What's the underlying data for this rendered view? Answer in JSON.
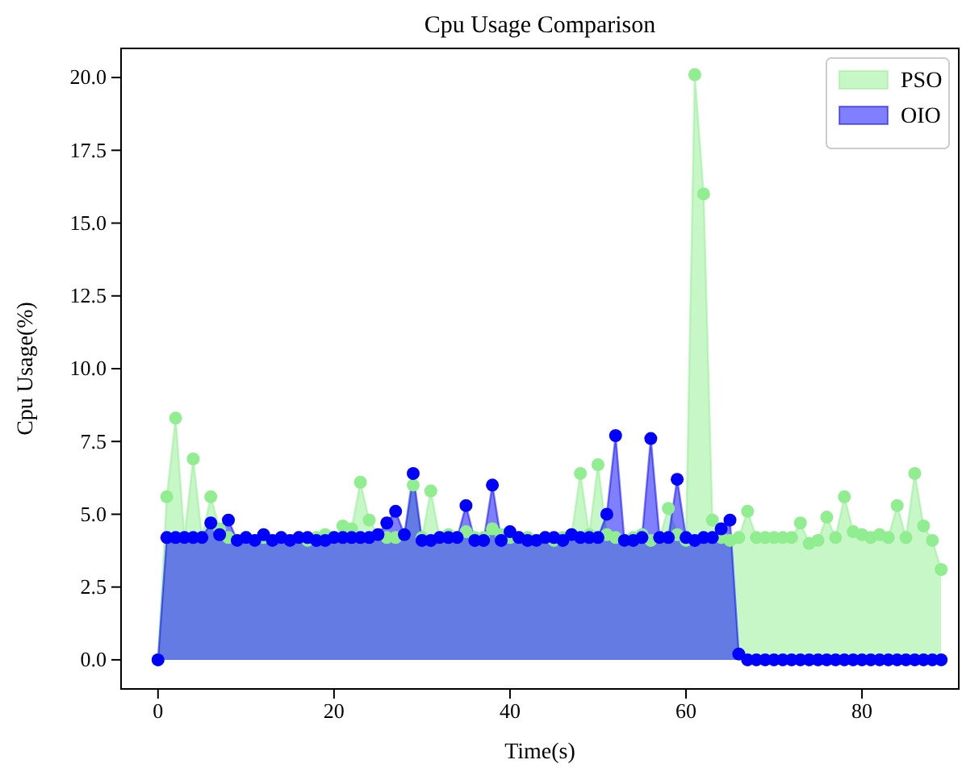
{
  "chart_data": {
    "type": "area",
    "title": "Cpu Usage Comparison",
    "xlabel": "Time(s)",
    "ylabel": "Cpu Usage(%)",
    "x": [
      0,
      1,
      2,
      3,
      4,
      5,
      6,
      7,
      8,
      9,
      10,
      11,
      12,
      13,
      14,
      15,
      16,
      17,
      18,
      19,
      20,
      21,
      22,
      23,
      24,
      25,
      26,
      27,
      28,
      29,
      30,
      31,
      32,
      33,
      34,
      35,
      36,
      37,
      38,
      39,
      40,
      41,
      42,
      43,
      44,
      45,
      46,
      47,
      48,
      49,
      50,
      51,
      52,
      53,
      54,
      55,
      56,
      57,
      58,
      59,
      60,
      61,
      62,
      63,
      64,
      65,
      66,
      67,
      68,
      69,
      70,
      71,
      72,
      73,
      74,
      75,
      76,
      77,
      78,
      79,
      80,
      81,
      82,
      83,
      84,
      85,
      86,
      87,
      88,
      89
    ],
    "series": [
      {
        "name": "PSO",
        "color": "#90ee90",
        "values": [
          0,
          5.6,
          8.3,
          4.2,
          6.9,
          4.2,
          5.6,
          4.5,
          4.2,
          4.1,
          4.2,
          4.1,
          4.2,
          4.1,
          4.2,
          4.1,
          4.2,
          4.1,
          4.2,
          4.3,
          4.2,
          4.6,
          4.5,
          6.1,
          4.8,
          4.3,
          4.2,
          4.2,
          4.3,
          6.0,
          4.2,
          5.8,
          4.2,
          4.3,
          4.2,
          4.4,
          4.2,
          4.2,
          4.5,
          4.3,
          4.2,
          4.2,
          4.2,
          4.1,
          4.2,
          4.1,
          4.2,
          4.3,
          6.4,
          4.3,
          6.7,
          4.3,
          4.2,
          4.1,
          4.2,
          4.3,
          4.1,
          4.2,
          5.2,
          4.3,
          4.1,
          20.1,
          16.0,
          4.8,
          4.2,
          4.1,
          4.2,
          5.1,
          4.2,
          4.2,
          4.2,
          4.2,
          4.2,
          4.7,
          4.0,
          4.1,
          4.9,
          4.2,
          5.6,
          4.4,
          4.3,
          4.2,
          4.3,
          4.2,
          5.3,
          4.2,
          6.4,
          4.6,
          4.1,
          3.1
        ]
      },
      {
        "name": "OIO",
        "color": "#0000ff",
        "values": [
          0,
          4.2,
          4.2,
          4.2,
          4.2,
          4.2,
          4.7,
          4.3,
          4.8,
          4.1,
          4.2,
          4.1,
          4.3,
          4.1,
          4.2,
          4.1,
          4.2,
          4.2,
          4.1,
          4.1,
          4.2,
          4.2,
          4.2,
          4.2,
          4.2,
          4.3,
          4.7,
          5.1,
          4.3,
          6.4,
          4.1,
          4.1,
          4.2,
          4.2,
          4.2,
          5.3,
          4.1,
          4.1,
          6.0,
          4.1,
          4.4,
          4.2,
          4.1,
          4.1,
          4.2,
          4.2,
          4.1,
          4.3,
          4.2,
          4.2,
          4.2,
          5.0,
          7.7,
          4.1,
          4.1,
          4.2,
          7.6,
          4.2,
          4.2,
          6.2,
          4.2,
          4.1,
          4.2,
          4.2,
          4.5,
          4.8,
          0.2,
          0,
          0,
          0,
          0,
          0,
          0,
          0,
          0,
          0,
          0,
          0,
          0,
          0,
          0,
          0,
          0,
          0,
          0,
          0,
          0,
          0,
          0,
          0
        ]
      }
    ],
    "xlim": [
      -4.2,
      91.0
    ],
    "xticks": [
      0,
      20,
      40,
      60,
      80
    ],
    "ylim": [
      -1.0,
      21.0
    ],
    "yticks": [
      {
        "value": 0,
        "label": "0.0"
      },
      {
        "value": 2.5,
        "label": "2.5"
      },
      {
        "value": 5,
        "label": "5.0"
      },
      {
        "value": 7.5,
        "label": "7.5"
      },
      {
        "value": 10,
        "label": "10.0"
      },
      {
        "value": 12.5,
        "label": "12.5"
      },
      {
        "value": 15,
        "label": "15.0"
      },
      {
        "value": 17.5,
        "label": "17.5"
      },
      {
        "value": 20,
        "label": "20.0"
      }
    ],
    "marker": "circle",
    "legend": "top right"
  }
}
